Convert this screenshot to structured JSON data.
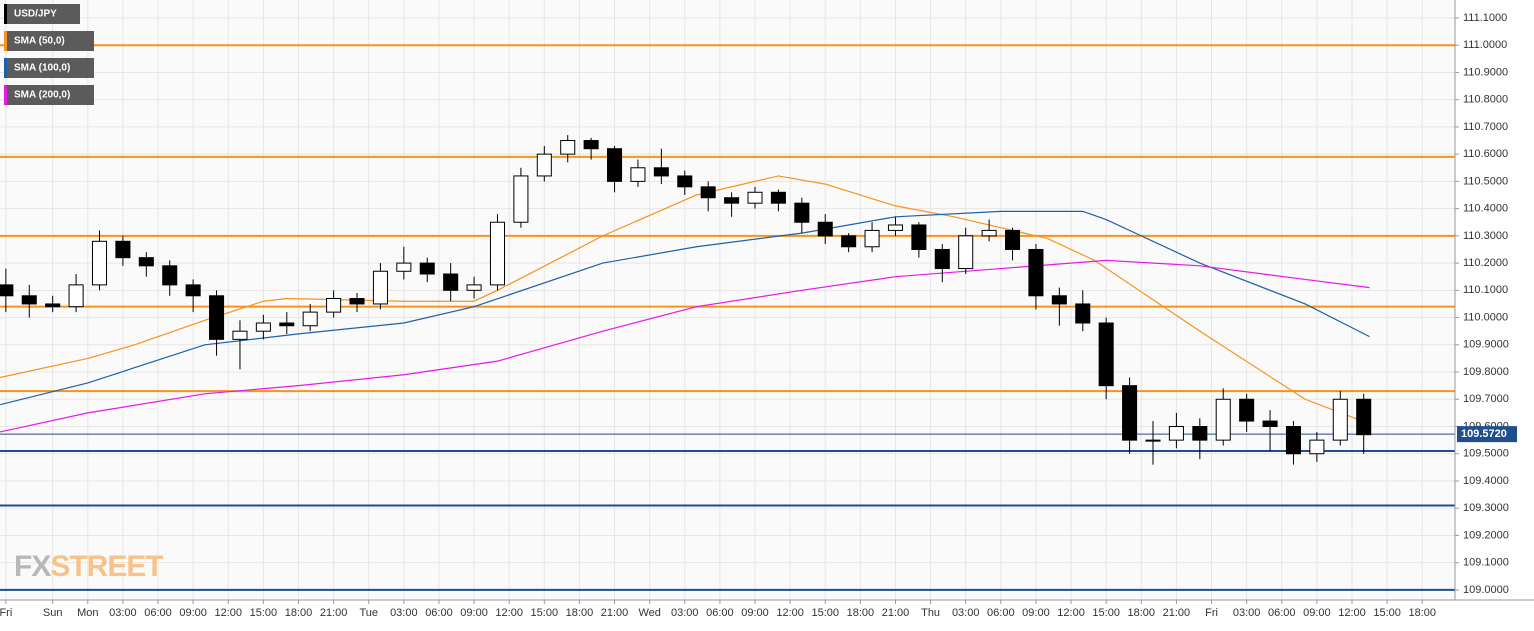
{
  "chart_data": {
    "type": "candlestick",
    "xlim": [
      -7.5,
      116.8
    ],
    "ylim": [
      108.963,
      111.166
    ],
    "grid": true,
    "xticks": [
      {
        "value": -7,
        "label": "Fri"
      },
      {
        "value": -3,
        "label": "Sun"
      },
      {
        "value": 0,
        "label": "Mon"
      },
      {
        "value": 3,
        "label": "03:00"
      },
      {
        "value": 6,
        "label": "06:00"
      },
      {
        "value": 9,
        "label": "09:00"
      },
      {
        "value": 12,
        "label": "12:00"
      },
      {
        "value": 15,
        "label": "15:00"
      },
      {
        "value": 18,
        "label": "18:00"
      },
      {
        "value": 21,
        "label": "21:00"
      },
      {
        "value": 24,
        "label": "Tue"
      },
      {
        "value": 27,
        "label": "03:00"
      },
      {
        "value": 30,
        "label": "06:00"
      },
      {
        "value": 33,
        "label": "09:00"
      },
      {
        "value": 36,
        "label": "12:00"
      },
      {
        "value": 39,
        "label": "15:00"
      },
      {
        "value": 42,
        "label": "18:00"
      },
      {
        "value": 45,
        "label": "21:00"
      },
      {
        "value": 48,
        "label": "Wed"
      },
      {
        "value": 51,
        "label": "03:00"
      },
      {
        "value": 54,
        "label": "06:00"
      },
      {
        "value": 57,
        "label": "09:00"
      },
      {
        "value": 60,
        "label": "12:00"
      },
      {
        "value": 63,
        "label": "15:00"
      },
      {
        "value": 66,
        "label": "18:00"
      },
      {
        "value": 69,
        "label": "21:00"
      },
      {
        "value": 72,
        "label": "Thu"
      },
      {
        "value": 75,
        "label": "03:00"
      },
      {
        "value": 78,
        "label": "06:00"
      },
      {
        "value": 81,
        "label": "09:00"
      },
      {
        "value": 84,
        "label": "12:00"
      },
      {
        "value": 87,
        "label": "15:00"
      },
      {
        "value": 90,
        "label": "18:00"
      },
      {
        "value": 93,
        "label": "21:00"
      },
      {
        "value": 96,
        "label": "Fri"
      },
      {
        "value": 99,
        "label": "03:00"
      },
      {
        "value": 102,
        "label": "06:00"
      },
      {
        "value": 105,
        "label": "09:00"
      },
      {
        "value": 108,
        "label": "12:00"
      },
      {
        "value": 111,
        "label": "15:00"
      },
      {
        "value": 114,
        "label": "18:00"
      }
    ],
    "yticks": [
      {
        "value": 109.0,
        "label": "109.0000"
      },
      {
        "value": 109.1,
        "label": "109.1000"
      },
      {
        "value": 109.2,
        "label": "109.2000"
      },
      {
        "value": 109.3,
        "label": "109.3000"
      },
      {
        "value": 109.4,
        "label": "109.4000"
      },
      {
        "value": 109.5,
        "label": "109.5000"
      },
      {
        "value": 109.6,
        "label": "109.6000"
      },
      {
        "value": 109.7,
        "label": "109.7000"
      },
      {
        "value": 109.8,
        "label": "109.8000"
      },
      {
        "value": 109.9,
        "label": "109.9000"
      },
      {
        "value": 110.0,
        "label": "110.0000"
      },
      {
        "value": 110.1,
        "label": "110.1000"
      },
      {
        "value": 110.2,
        "label": "110.2000"
      },
      {
        "value": 110.3,
        "label": "110.3000"
      },
      {
        "value": 110.4,
        "label": "110.4000"
      },
      {
        "value": 110.5,
        "label": "110.5000"
      },
      {
        "value": 110.6,
        "label": "110.6000"
      },
      {
        "value": 110.7,
        "label": "110.7000"
      },
      {
        "value": 110.8,
        "label": "110.8000"
      },
      {
        "value": 110.9,
        "label": "110.9000"
      },
      {
        "value": 111.0,
        "label": "111.0000"
      },
      {
        "value": 111.1,
        "label": "111.1000"
      }
    ],
    "series": [
      {
        "name": "USD/JPY",
        "type": "candlestick",
        "color": "#000000",
        "x": [
          -7,
          -5,
          -3,
          -1,
          1,
          3,
          5,
          7,
          9,
          11,
          13,
          15,
          17,
          19,
          21,
          23,
          25,
          27,
          29,
          31,
          33,
          35,
          37,
          39,
          41,
          43,
          45,
          47,
          49,
          51,
          53,
          55,
          57,
          59,
          61,
          63,
          65,
          67,
          69,
          71,
          73,
          75,
          77,
          79,
          81,
          83,
          85,
          87,
          89,
          91,
          93,
          95,
          97,
          99,
          101,
          103,
          105,
          107,
          109
        ],
        "values": [
          [
            110.12,
            110.18,
            110.02,
            110.08
          ],
          [
            110.08,
            110.12,
            110.0,
            110.05
          ],
          [
            110.05,
            110.08,
            110.02,
            110.04
          ],
          [
            110.04,
            110.16,
            110.02,
            110.12
          ],
          [
            110.12,
            110.32,
            110.1,
            110.28
          ],
          [
            110.28,
            110.3,
            110.19,
            110.22
          ],
          [
            110.22,
            110.24,
            110.15,
            110.19
          ],
          [
            110.19,
            110.21,
            110.08,
            110.12
          ],
          [
            110.12,
            110.14,
            110.02,
            110.08
          ],
          [
            110.08,
            110.1,
            109.86,
            109.92
          ],
          [
            109.92,
            109.99,
            109.81,
            109.95
          ],
          [
            109.95,
            110.01,
            109.92,
            109.98
          ],
          [
            109.98,
            110.02,
            109.94,
            109.97
          ],
          [
            109.97,
            110.05,
            109.95,
            110.02
          ],
          [
            110.02,
            110.1,
            110.0,
            110.07
          ],
          [
            110.07,
            110.09,
            110.02,
            110.05
          ],
          [
            110.05,
            110.2,
            110.03,
            110.17
          ],
          [
            110.17,
            110.26,
            110.14,
            110.2
          ],
          [
            110.2,
            110.22,
            110.13,
            110.16
          ],
          [
            110.16,
            110.2,
            110.06,
            110.1
          ],
          [
            110.1,
            110.15,
            110.07,
            110.12
          ],
          [
            110.12,
            110.38,
            110.1,
            110.35
          ],
          [
            110.35,
            110.55,
            110.33,
            110.52
          ],
          [
            110.52,
            110.63,
            110.5,
            110.6
          ],
          [
            110.6,
            110.67,
            110.57,
            110.65
          ],
          [
            110.65,
            110.66,
            110.58,
            110.62
          ],
          [
            110.62,
            110.63,
            110.46,
            110.5
          ],
          [
            110.5,
            110.58,
            110.48,
            110.55
          ],
          [
            110.55,
            110.62,
            110.49,
            110.52
          ],
          [
            110.52,
            110.54,
            110.45,
            110.48
          ],
          [
            110.48,
            110.5,
            110.39,
            110.44
          ],
          [
            110.44,
            110.46,
            110.37,
            110.42
          ],
          [
            110.42,
            110.48,
            110.4,
            110.46
          ],
          [
            110.46,
            110.47,
            110.39,
            110.42
          ],
          [
            110.42,
            110.44,
            110.31,
            110.35
          ],
          [
            110.35,
            110.38,
            110.27,
            110.3
          ],
          [
            110.3,
            110.31,
            110.24,
            110.26
          ],
          [
            110.26,
            110.35,
            110.24,
            110.32
          ],
          [
            110.32,
            110.37,
            110.3,
            110.34
          ],
          [
            110.34,
            110.35,
            110.22,
            110.25
          ],
          [
            110.25,
            110.27,
            110.13,
            110.18
          ],
          [
            110.18,
            110.33,
            110.16,
            110.3
          ],
          [
            110.3,
            110.36,
            110.28,
            110.32
          ],
          [
            110.32,
            110.33,
            110.21,
            110.25
          ],
          [
            110.25,
            110.27,
            110.03,
            110.08
          ],
          [
            110.08,
            110.11,
            109.97,
            110.05
          ],
          [
            110.05,
            110.1,
            109.95,
            109.98
          ],
          [
            109.98,
            110.0,
            109.7,
            109.75
          ],
          [
            109.75,
            109.78,
            109.5,
            109.55
          ],
          [
            109.55,
            109.62,
            109.46,
            109.55
          ],
          [
            109.55,
            109.65,
            109.52,
            109.6
          ],
          [
            109.6,
            109.63,
            109.48,
            109.55
          ],
          [
            109.55,
            109.74,
            109.53,
            109.7
          ],
          [
            109.7,
            109.72,
            109.58,
            109.62
          ],
          [
            109.62,
            109.66,
            109.51,
            109.6
          ],
          [
            109.6,
            109.62,
            109.46,
            109.5
          ],
          [
            109.5,
            109.58,
            109.47,
            109.55
          ],
          [
            109.55,
            109.73,
            109.53,
            109.7
          ],
          [
            109.7,
            109.72,
            109.5,
            109.57
          ]
        ]
      },
      {
        "name": "SMA (50,0)",
        "type": "line",
        "color": "#f7931a",
        "x": [
          -7.5,
          0,
          4,
          10,
          15,
          17,
          27,
          33,
          35,
          44,
          52,
          59,
          63,
          69,
          74,
          78,
          82,
          86,
          95,
          104,
          109.5
        ],
        "values": [
          109.78,
          109.85,
          109.9,
          109.99,
          110.06,
          110.07,
          110.06,
          110.06,
          110.1,
          110.3,
          110.45,
          110.52,
          110.49,
          110.41,
          110.37,
          110.33,
          110.29,
          110.21,
          109.95,
          109.7,
          109.61
        ]
      },
      {
        "name": "SMA (100,0)",
        "type": "line",
        "color": "#1f5fa8",
        "x": [
          -7.5,
          0,
          10,
          18,
          27,
          33,
          44,
          52,
          61,
          69,
          78,
          85,
          87,
          95,
          104,
          109.5
        ],
        "values": [
          109.68,
          109.76,
          109.9,
          109.94,
          109.98,
          110.04,
          110.2,
          110.26,
          110.31,
          110.37,
          110.39,
          110.39,
          110.36,
          110.2,
          110.05,
          109.93
        ]
      },
      {
        "name": "SMA (200,0)",
        "type": "line",
        "color": "#e619e6",
        "x": [
          -7.5,
          0,
          10,
          18,
          27,
          35,
          44,
          52,
          61,
          69,
          78,
          87,
          95,
          104,
          109.5
        ],
        "values": [
          109.58,
          109.65,
          109.72,
          109.75,
          109.79,
          109.84,
          109.95,
          110.04,
          110.1,
          110.15,
          110.18,
          110.21,
          110.19,
          110.14,
          110.11
        ]
      }
    ],
    "hlines": [
      {
        "value": 111.0,
        "color": "#f7931a"
      },
      {
        "value": 110.59,
        "color": "#f7931a"
      },
      {
        "value": 110.3,
        "color": "#f7931a"
      },
      {
        "value": 110.04,
        "color": "#f7931a"
      },
      {
        "value": 109.73,
        "color": "#f7931a"
      },
      {
        "value": 109.51,
        "color": "#1f4e8c"
      },
      {
        "value": 109.31,
        "color": "#1f4e8c"
      },
      {
        "value": 109.0,
        "color": "#1f4e8c"
      }
    ],
    "last": {
      "value": 109.572,
      "label": "109.5720",
      "color": "#1f4e8c"
    },
    "watermark": [
      "FX",
      "STREET"
    ]
  }
}
